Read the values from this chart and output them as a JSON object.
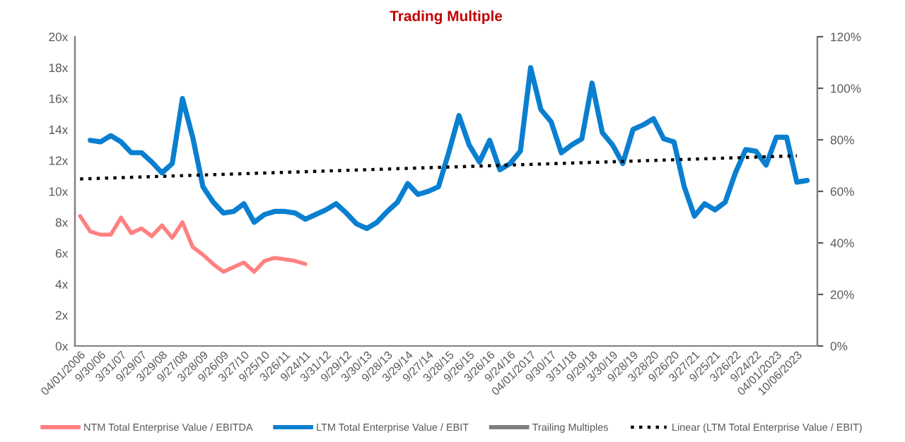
{
  "chart_data": {
    "type": "line",
    "title": "Trading Multiple",
    "categories": [
      "04/01/2006",
      null,
      "9/30/06",
      null,
      "3/31/07",
      null,
      "9/29/07",
      null,
      "3/29/08",
      null,
      "9/27/08",
      null,
      "3/28/09",
      null,
      "9/26/09",
      null,
      "3/27/10",
      null,
      "9/25/10",
      null,
      "3/26/11",
      null,
      "9/24/11",
      null,
      "3/31/12",
      null,
      "9/29/12",
      null,
      "3/30/13",
      null,
      "9/28/13",
      null,
      "3/29/14",
      null,
      "9/27/14",
      null,
      "3/28/15",
      null,
      "9/26/15",
      null,
      "3/26/16",
      null,
      "9/24/16",
      null,
      "04/01/2017",
      null,
      "9/30/17",
      null,
      "3/31/18",
      null,
      "9/29/18",
      null,
      "3/30/19",
      null,
      "9/28/19",
      null,
      "3/28/20",
      null,
      "9/26/20",
      null,
      "3/27/21",
      null,
      "9/25/21",
      null,
      "3/26/22",
      null,
      "9/24/22",
      null,
      "04/01/2023",
      null,
      "10/06/2023",
      null
    ],
    "series": [
      {
        "name": "NTM Total Enterprise Value / EBITDA",
        "color": "#ff8080",
        "values": [
          8.4,
          7.4,
          7.2,
          7.2,
          8.3,
          7.3,
          7.6,
          7.1,
          7.8,
          7.0,
          8.0,
          6.4,
          5.9,
          5.3,
          4.8,
          5.1,
          5.4,
          4.8,
          5.5,
          5.7,
          5.6,
          5.5,
          5.3,
          null,
          null,
          null,
          null,
          null,
          null,
          null,
          null,
          null,
          null,
          null,
          null,
          null,
          null,
          null,
          null,
          null,
          null,
          null,
          null,
          null,
          null,
          null,
          null,
          null,
          null,
          null,
          null,
          null,
          null,
          null,
          null,
          null,
          null,
          null,
          null,
          null,
          null,
          null,
          null,
          null,
          null,
          null,
          null,
          null,
          null,
          null,
          null,
          null
        ]
      },
      {
        "name": "LTM Total Enterprise Value / EBIT",
        "color": "#0a7fd0",
        "values": [
          null,
          13.3,
          13.2,
          13.6,
          13.2,
          12.5,
          12.5,
          11.9,
          11.2,
          11.8,
          16.0,
          13.5,
          10.3,
          9.3,
          8.6,
          8.7,
          9.2,
          8.0,
          8.5,
          8.7,
          8.7,
          8.6,
          8.2,
          8.5,
          8.8,
          9.2,
          8.6,
          7.9,
          7.6,
          8.0,
          8.7,
          9.3,
          10.5,
          9.8,
          10.0,
          10.3,
          12.5,
          14.9,
          13.0,
          11.9,
          13.3,
          11.4,
          11.8,
          12.6,
          18.0,
          15.3,
          14.5,
          12.5,
          13.0,
          13.4,
          17.0,
          13.8,
          13.0,
          11.8,
          14.0,
          14.3,
          14.7,
          13.4,
          13.2,
          10.3,
          8.4,
          9.2,
          8.8,
          9.3,
          11.2,
          12.7,
          12.6,
          11.7,
          13.5,
          13.5,
          10.6,
          10.7
        ]
      },
      {
        "name": "Trailing Multiples",
        "color": "#7f7f7f",
        "values": [
          null,
          null,
          null,
          null,
          null,
          null,
          null,
          null,
          null,
          null,
          null,
          null,
          null,
          null,
          null,
          null,
          null,
          null,
          null,
          null,
          null,
          null,
          null,
          null,
          null,
          null,
          null,
          null,
          null,
          null,
          null,
          null,
          null,
          null,
          null,
          null,
          null,
          null,
          null,
          null,
          null,
          null,
          null,
          null,
          null,
          null,
          null,
          null,
          null,
          null,
          null,
          null,
          null,
          null,
          null,
          null,
          null,
          null,
          null,
          null,
          null,
          null,
          null,
          null,
          null,
          null,
          null,
          null,
          null,
          null,
          null,
          null
        ]
      },
      {
        "name": "Linear (LTM Total Enterprise Value / EBIT)",
        "color": "#000000",
        "line_style": "dotted",
        "x": [
          "04/01/2006",
          "10/06/2023"
        ],
        "values": [
          10.8,
          12.3
        ]
      }
    ],
    "ylim": [
      0,
      20
    ],
    "yticks": [
      {
        "value": 0,
        "label": "0x"
      },
      {
        "value": 2,
        "label": "2x"
      },
      {
        "value": 4,
        "label": "4x"
      },
      {
        "value": 6,
        "label": "6x"
      },
      {
        "value": 8,
        "label": "8x"
      },
      {
        "value": 10,
        "label": "10x"
      },
      {
        "value": 12,
        "label": "12x"
      },
      {
        "value": 14,
        "label": "14x"
      },
      {
        "value": 16,
        "label": "16x"
      },
      {
        "value": 18,
        "label": "18x"
      },
      {
        "value": 20,
        "label": "20x"
      }
    ],
    "y2lim": [
      0,
      120
    ],
    "y2ticks": [
      {
        "value": 0,
        "label": "0%"
      },
      {
        "value": 20,
        "label": "20%"
      },
      {
        "value": 40,
        "label": "40%"
      },
      {
        "value": 60,
        "label": "60%"
      },
      {
        "value": 80,
        "label": "80%"
      },
      {
        "value": 100,
        "label": "100%"
      },
      {
        "value": 120,
        "label": "120%"
      }
    ],
    "legend": "bottom",
    "grid": false,
    "marker": "none",
    "line_style": "solid"
  }
}
